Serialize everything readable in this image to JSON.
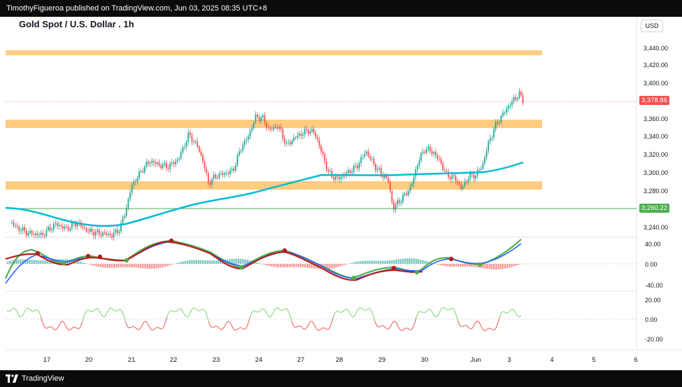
{
  "header": {
    "published": "TimothyFigueroa published on TradingView.com, Jun 03, 2025 08:35 UTC+8"
  },
  "chart_header": {
    "symbol_title": "Gold Spot / U.S. Dollar . 1h",
    "currency": "USD"
  },
  "footer": {
    "brand": "TradingView"
  },
  "price_axis": {
    "ticks": [
      "3,440.00",
      "3,420.00",
      "3,400.00",
      "3,380.00",
      "3,360.00",
      "3,340.00",
      "3,320.00",
      "3,300.00",
      "3,280.00",
      "3,260.00",
      "3,240.00"
    ]
  },
  "price_labels": {
    "last": "3,378.86",
    "level": "3,260.22"
  },
  "osc1_axis": {
    "ticks": [
      "40.00",
      "0.00",
      "-40.00"
    ]
  },
  "osc2_axis": {
    "ticks": [
      "20.00",
      "0.00",
      "-20.00"
    ]
  },
  "time_axis": {
    "ticks": [
      "17",
      "20",
      "21",
      "22",
      "23",
      "24",
      "27",
      "28",
      "29",
      "30",
      "Jun",
      "3",
      "4",
      "5",
      "6"
    ]
  },
  "colors": {
    "up": "#26a69a",
    "down": "#ef5350",
    "zone": "#ffcc80",
    "ma": "#00bcd4",
    "level": "#4caf50"
  },
  "chart_data": {
    "type": "candlestick",
    "title": "Gold Spot / U.S. Dollar . 1h",
    "ylim": [
      3230,
      3450
    ],
    "support_resistance_zones": [
      [
        3432,
        3438
      ],
      [
        3350,
        3358
      ],
      [
        3283,
        3292
      ]
    ],
    "horizontal_levels": {
      "last_price": 3378.86,
      "green_line": 3260.22
    },
    "ma_series": [
      {
        "x": "17",
        "y": 3259
      },
      {
        "x": "20",
        "y": 3251
      },
      {
        "x": "21",
        "y": 3253
      },
      {
        "x": "22",
        "y": 3263
      },
      {
        "x": "23",
        "y": 3270
      },
      {
        "x": "24",
        "y": 3276
      },
      {
        "x": "27",
        "y": 3288
      },
      {
        "x": "28",
        "y": 3300
      },
      {
        "x": "29",
        "y": 3300
      },
      {
        "x": "30",
        "y": 3300
      },
      {
        "x": "Jun",
        "y": 3298
      },
      {
        "x": "3",
        "y": 3310
      }
    ],
    "close_series": [
      {
        "x": "17",
        "y": 3232
      },
      {
        "x": "20",
        "y": 3235
      },
      {
        "x": "21",
        "y": 3288
      },
      {
        "x": "22",
        "y": 3335
      },
      {
        "x": "23",
        "y": 3298
      },
      {
        "x": "24",
        "y": 3365
      },
      {
        "x": "27",
        "y": 3345
      },
      {
        "x": "28",
        "y": 3295
      },
      {
        "x": "29",
        "y": 3255
      },
      {
        "x": "30",
        "y": 3328
      },
      {
        "x": "Jun",
        "y": 3298
      },
      {
        "x": "3",
        "y": 3379
      }
    ]
  }
}
